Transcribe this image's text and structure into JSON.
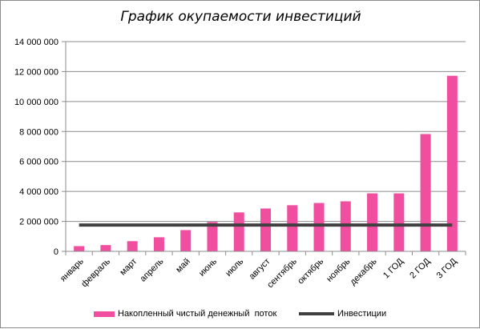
{
  "chart_data": {
    "type": "bar",
    "title": "График окупаемости инвестиций",
    "categories": [
      "январь",
      "февраль",
      "март",
      "апрель",
      "май",
      "июнь",
      "июль",
      "август",
      "сентябрь",
      "октябрь",
      "ноябрь",
      "декабрь",
      "1 ГОД",
      "2 ГОД",
      "3 ГОД"
    ],
    "series": [
      {
        "name": "Накопленный чистый денежный  поток",
        "type": "bar",
        "color": "#f04fa0",
        "values": [
          350000,
          420000,
          680000,
          940000,
          1420000,
          1960000,
          2600000,
          2860000,
          3080000,
          3230000,
          3340000,
          3870000,
          3870000,
          7830000,
          11720000
        ]
      },
      {
        "name": "Инвестиции",
        "type": "line",
        "color": "#404040",
        "values": [
          1760000,
          1760000,
          1760000,
          1760000,
          1760000,
          1760000,
          1760000,
          1760000,
          1760000,
          1760000,
          1760000,
          1760000,
          1760000,
          1760000,
          1760000
        ]
      }
    ],
    "yticks": [
      "0",
      "2 000 000",
      "4 000 000",
      "6 000 000",
      "8 000 000",
      "10 000 000",
      "12 000 000",
      "14 000 000"
    ],
    "ylim": [
      0,
      14000000
    ],
    "ystep": 2000000,
    "grid": true,
    "legend": "bottom"
  }
}
